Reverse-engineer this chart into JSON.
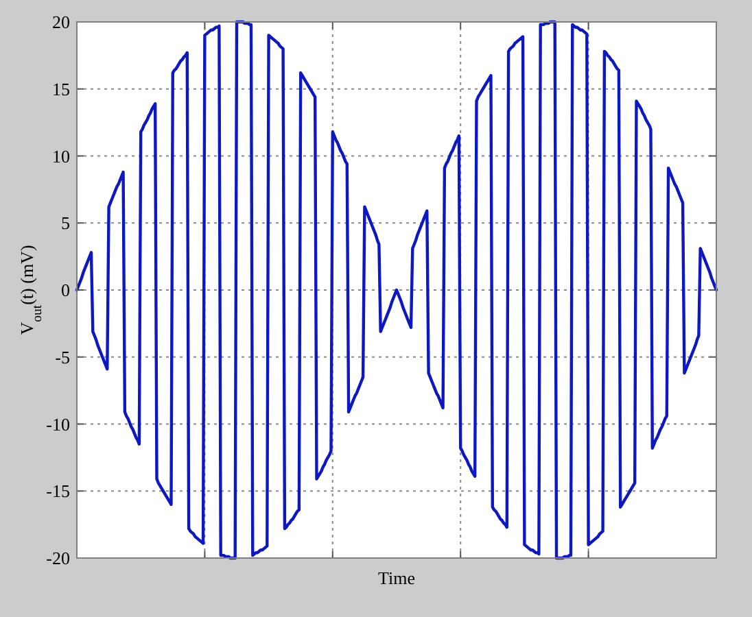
{
  "chart_data": {
    "type": "line",
    "xlabel": "Time",
    "ylabel": "V$_{out}$(t) (mV)",
    "color": "#0c18c4",
    "categories": [
      null,
      null,
      null,
      null,
      null,
      null,
      null,
      null,
      null,
      null,
      null,
      null,
      null,
      null,
      null,
      null,
      null,
      null,
      null,
      null,
      null,
      null,
      null,
      null,
      null,
      null,
      null,
      null,
      null,
      null,
      null,
      null,
      null,
      null,
      null,
      null,
      null,
      null,
      null,
      null,
      null,
      null,
      null,
      null,
      null,
      null,
      null,
      null,
      null,
      null,
      null,
      null,
      null,
      null,
      null,
      null,
      null,
      null,
      null,
      null,
      null,
      null,
      null,
      null,
      null,
      null,
      null,
      null,
      null,
      null,
      null,
      null,
      null,
      null,
      null,
      null,
      null,
      null,
      null,
      null,
      null,
      null,
      null,
      null,
      null,
      null,
      null,
      null,
      null,
      null,
      null,
      null,
      null,
      null,
      null,
      null,
      null,
      null,
      null,
      null,
      null,
      null,
      null,
      null,
      null,
      null,
      null,
      null,
      null,
      null,
      null,
      null,
      null,
      null,
      null,
      null,
      null,
      null,
      null,
      null,
      null,
      null,
      null,
      null,
      null,
      null,
      null,
      null,
      null,
      null,
      null,
      null,
      null,
      null,
      null,
      null,
      null,
      null,
      null,
      null,
      null,
      null,
      null,
      null,
      null,
      null,
      null,
      null,
      null,
      null,
      null,
      null,
      null,
      null,
      null,
      null,
      null,
      null,
      null,
      null,
      null,
      null,
      null,
      null,
      null,
      null,
      null,
      null,
      null,
      null,
      null,
      null,
      null,
      null,
      null,
      null,
      null,
      null,
      null,
      null,
      null,
      null,
      null,
      null,
      null,
      null,
      null,
      null,
      null,
      null,
      null,
      null,
      null,
      null,
      null,
      null,
      null,
      null,
      null,
      null,
      null,
      null,
      null,
      null,
      null,
      null,
      null,
      null,
      null,
      null,
      null,
      null,
      null,
      null,
      null,
      null,
      null,
      null,
      null,
      null,
      null,
      null,
      null,
      null,
      null,
      null,
      null,
      null,
      null,
      null,
      null,
      null,
      null,
      null,
      null,
      null,
      null,
      null,
      null,
      null,
      null,
      null,
      null,
      null,
      null,
      null,
      null,
      null,
      null,
      null,
      null,
      null,
      null,
      null,
      null,
      null,
      null,
      null,
      null,
      null,
      null,
      null,
      null,
      null,
      null,
      null,
      null,
      null,
      null,
      null,
      null,
      null,
      null,
      null,
      null,
      null,
      null,
      null,
      null,
      null,
      null,
      null,
      null,
      null,
      null,
      null,
      null,
      null,
      null,
      null,
      null,
      null,
      null,
      null,
      null,
      null,
      null,
      null,
      null,
      null,
      null,
      null,
      null,
      null,
      null,
      null,
      null,
      null,
      null,
      null,
      null,
      null,
      null,
      null,
      null,
      null,
      null,
      null,
      null,
      null,
      null,
      null,
      null,
      null,
      null,
      null,
      null,
      null,
      null,
      null,
      null,
      null,
      null,
      null,
      null,
      null,
      null,
      null,
      null,
      null,
      null,
      null,
      null,
      null,
      null,
      null,
      null,
      null,
      null,
      null,
      null,
      null,
      null,
      null,
      null,
      null,
      null,
      null,
      null,
      null,
      null,
      null,
      null,
      null,
      null,
      null,
      null,
      null,
      null,
      null,
      null,
      null,
      null,
      null,
      null,
      null,
      null,
      null,
      null,
      null,
      null,
      null,
      null,
      null,
      null,
      null,
      null,
      null,
      null,
      null,
      null,
      null,
      null,
      null,
      null,
      null,
      null,
      null,
      null,
      null,
      null
    ],
    "values": [
      0,
      0.3,
      0.6,
      0.9,
      1.3,
      1.6,
      1.9,
      2.2,
      2.5,
      2.8,
      -3.1,
      -3.4,
      -3.7,
      -4.1,
      -4.4,
      -4.7,
      -5,
      -5.3,
      -5.6,
      -5.9,
      6.2,
      6.5,
      6.8,
      7.1,
      7.4,
      7.7,
      7.9,
      8.2,
      8.5,
      8.8,
      -9.1,
      -9.4,
      -9.6,
      -9.9,
      -10.2,
      -10.4,
      -10.7,
      -11,
      -11.2,
      -11.5,
      11.8,
      12,
      12.3,
      12.5,
      12.7,
      13,
      13.2,
      13.5,
      13.7,
      13.9,
      -14.1,
      -14.4,
      -14.6,
      -14.8,
      -15,
      -15.2,
      -15.4,
      -15.6,
      -15.8,
      -16,
      16.2,
      16.4,
      16.5,
      16.7,
      16.9,
      17.1,
      17.2,
      17.4,
      17.5,
      17.7,
      -17.8,
      -18,
      -18.1,
      -18.2,
      -18.4,
      -18.5,
      -18.6,
      -18.7,
      -18.8,
      -18.9,
      19,
      19.1,
      19.2,
      19.3,
      19.4,
      19.4,
      19.5,
      19.6,
      19.6,
      19.7,
      -19.8,
      -19.8,
      -19.8,
      -19.9,
      -19.9,
      -19.9,
      -20,
      -20,
      -20,
      -20,
      20,
      20,
      20,
      20,
      20,
      19.9,
      19.9,
      19.9,
      19.8,
      19.8,
      -19.8,
      -19.7,
      -19.6,
      -19.6,
      -19.5,
      -19.4,
      -19.4,
      -19.3,
      -19.2,
      -19.1,
      19,
      18.9,
      18.8,
      18.7,
      18.6,
      18.5,
      18.4,
      18.2,
      18.1,
      18,
      -17.8,
      -17.7,
      -17.5,
      -17.4,
      -17.2,
      -17.1,
      -16.9,
      -16.7,
      -16.5,
      -16.4,
      16.2,
      16,
      15.8,
      15.6,
      15.4,
      15.2,
      15,
      14.8,
      14.6,
      14.4,
      -14.1,
      -13.9,
      -13.7,
      -13.5,
      -13.2,
      -13,
      -12.7,
      -12.5,
      -12.3,
      -12,
      11.8,
      11.5,
      11.2,
      11,
      10.7,
      10.4,
      10.2,
      9.9,
      9.6,
      9.4,
      -9.1,
      -8.8,
      -8.5,
      -8.2,
      -7.9,
      -7.7,
      -7.4,
      -7.1,
      -6.8,
      -6.5,
      6.2,
      5.9,
      5.6,
      5.3,
      5,
      4.7,
      4.4,
      4.1,
      3.7,
      3.4,
      -3.1,
      -2.8,
      -2.5,
      -2.2,
      -1.9,
      -1.6,
      -1.3,
      -0.9,
      -0.6,
      -0.3,
      0,
      -0.3,
      -0.6,
      -0.9,
      -1.3,
      -1.6,
      -1.9,
      -2.2,
      -2.5,
      -2.8,
      3.1,
      3.4,
      3.7,
      4.1,
      4.4,
      4.7,
      5,
      5.3,
      5.6,
      5.9,
      -6.2,
      -6.5,
      -6.8,
      -7.1,
      -7.4,
      -7.7,
      -7.9,
      -8.2,
      -8.5,
      -8.8,
      9.1,
      9.4,
      9.6,
      9.9,
      10.2,
      10.4,
      10.7,
      11,
      11.2,
      11.5,
      -11.8,
      -12,
      -12.3,
      -12.5,
      -12.7,
      -13,
      -13.2,
      -13.5,
      -13.7,
      -13.9,
      14.1,
      14.4,
      14.6,
      14.8,
      15,
      15.2,
      15.4,
      15.6,
      15.8,
      16,
      -16.2,
      -16.4,
      -16.5,
      -16.7,
      -16.9,
      -17.1,
      -17.2,
      -17.4,
      -17.5,
      -17.7,
      17.8,
      18,
      18.1,
      18.2,
      18.4,
      18.5,
      18.6,
      18.7,
      18.8,
      18.9,
      -19,
      -19.1,
      -19.2,
      -19.3,
      -19.4,
      -19.4,
      -19.5,
      -19.6,
      -19.6,
      -19.7,
      19.8,
      19.8,
      19.8,
      19.9,
      19.9,
      19.9,
      20,
      20,
      20,
      20,
      -20,
      -20,
      -20,
      -20,
      -20,
      -19.9,
      -19.9,
      -19.9,
      -19.8,
      -19.8,
      19.8,
      19.7,
      19.6,
      19.6,
      19.5,
      19.4,
      19.4,
      19.3,
      19.2,
      19.1,
      -19,
      -18.9,
      -18.8,
      -18.7,
      -18.6,
      -18.5,
      -18.4,
      -18.2,
      -18.1,
      -18,
      17.8,
      17.7,
      17.5,
      17.4,
      17.2,
      17.1,
      16.9,
      16.7,
      16.5,
      16.4,
      -16.2,
      -16,
      -15.8,
      -15.6,
      -15.4,
      -15.2,
      -15,
      -14.8,
      -14.6,
      -14.4,
      14.1,
      13.9,
      13.7,
      13.5,
      13.2,
      13,
      12.7,
      12.5,
      12.3,
      12,
      -11.8,
      -11.5,
      -11.2,
      -11,
      -10.7,
      -10.4,
      -10.2,
      -9.9,
      -9.6,
      -9.4,
      9.1,
      8.8,
      8.5,
      8.2,
      7.9,
      7.7,
      7.4,
      7.1,
      6.8,
      6.5,
      -6.2,
      -5.9,
      -5.6,
      -5.3,
      -5,
      -4.7,
      -4.4,
      -4.1,
      -3.7,
      -3.4,
      3.1,
      2.8,
      2.5,
      2.2,
      1.9,
      1.6,
      1.3,
      0.9,
      0.6,
      0.3,
      0
    ],
    "ylim": [
      -20,
      20
    ],
    "yticks": [
      -20,
      -15,
      -10,
      -5,
      0,
      5,
      10,
      15,
      20
    ],
    "grid": true
  }
}
